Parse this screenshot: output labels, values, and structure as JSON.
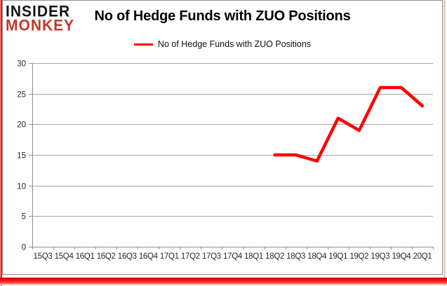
{
  "brand": {
    "line1": "INSIDER",
    "line2": "MONKEY",
    "accent": "#c0392b"
  },
  "header": {
    "title": "No of Hedge Funds with ZUO Positions"
  },
  "legend": {
    "label": "No of Hedge Funds with ZUO Positions"
  },
  "chart_data": {
    "type": "line",
    "title": "No of Hedge Funds with ZUO Positions",
    "categories": [
      "15Q3",
      "15Q4",
      "16Q1",
      "16Q2",
      "16Q3",
      "16Q4",
      "17Q1",
      "17Q2",
      "17Q3",
      "17Q4",
      "18Q1",
      "18Q2",
      "18Q3",
      "18Q4",
      "19Q1",
      "19Q2",
      "19Q3",
      "19Q4",
      "20Q1"
    ],
    "series": [
      {
        "name": "No of Hedge Funds with ZUO Positions",
        "color": "#ff0000",
        "values": [
          null,
          null,
          null,
          null,
          null,
          null,
          null,
          null,
          null,
          null,
          null,
          15,
          15,
          14,
          21,
          19,
          26,
          26,
          23
        ]
      }
    ],
    "xlabel": "",
    "ylabel": "",
    "ylim": [
      0,
      30
    ],
    "yticks": [
      0,
      5,
      10,
      15,
      20,
      25,
      30
    ],
    "grid": true,
    "legend_position": "top"
  },
  "colors": {
    "line_red": "#ff0000",
    "brand_red": "#c0392b",
    "page_border_red": "#f01515",
    "chart_border_gray": "#919191",
    "gridline_gray": "#a3a3a3",
    "axis_gray": "#8f8f8f",
    "tick_label": "#262626"
  }
}
